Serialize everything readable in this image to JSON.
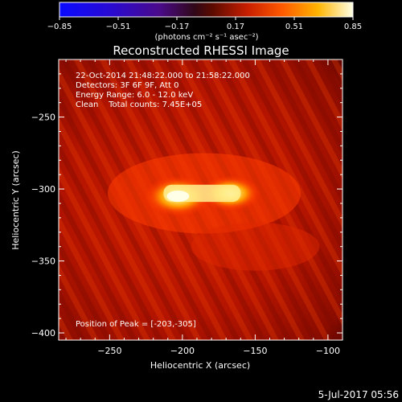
{
  "colorbar": {
    "ticks": [
      "-0.85",
      "-0.51",
      "-0.17",
      "0.17",
      "0.51",
      "0.85"
    ],
    "range": [
      -0.85,
      0.85
    ],
    "unit_label": "(photons cm⁻² s⁻¹ asec⁻²)"
  },
  "chart_data": {
    "type": "heatmap",
    "title": "Reconstructed RHESSI Image",
    "xlabel": "Heliocentric X (arcsec)",
    "ylabel": "Heliocentric Y (arcsec)",
    "xlim": [
      -285,
      -90
    ],
    "ylim": [
      -405,
      -210
    ],
    "xticks": [
      -250,
      -200,
      -150,
      -100
    ],
    "xtick_labels": [
      "−250",
      "−200",
      "−150",
      "−100"
    ],
    "yticks": [
      -250,
      -300,
      -350,
      -400
    ],
    "ytick_labels": [
      "−250",
      "−300",
      "−350",
      "−400"
    ],
    "sources": [
      {
        "x": -203,
        "y": -305,
        "intensity": 0.85
      },
      {
        "x": -167,
        "y": -303,
        "intensity": 0.75
      }
    ],
    "peak": {
      "x": -203,
      "y": -305
    },
    "annotations": [
      "22-Oct-2014 21:48:22.000 to 21:58:22.000",
      "Detectors: 3F 6F 9F, Att 0",
      "Energy Range: 6.0 - 12.0 keV",
      "Clean    Total counts: 7.45E+05"
    ],
    "peak_label": "Position of Peak = [-203,-305]"
  },
  "footer": {
    "date": "5-Jul-2017 05:56"
  },
  "colors": {
    "accent": "#ff2a00",
    "background": "#000000"
  }
}
